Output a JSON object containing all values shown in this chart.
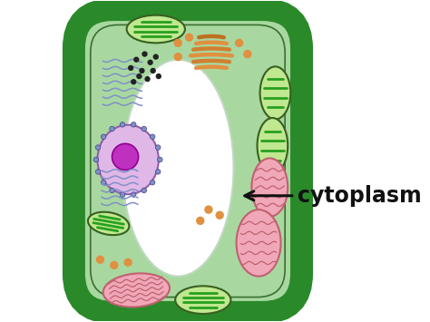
{
  "bg_color": "#ffffff",
  "cell_wall_color": "#2a8a2a",
  "cell_fill_color": "#a8d8a0",
  "cell_inner_fill": "#b8e0b0",
  "vacuole_color": "#e8f8e8",
  "vacuole_border": "#c0d8c0",
  "nucleus_fill": "#e0b8e8",
  "nucleus_border": "#9060a8",
  "nucleolus_fill": "#c030c0",
  "chloroplast_fill": "#c0e890",
  "chloroplast_border": "#386020",
  "chloroplast_stripe": "#28a020",
  "mito_fill": "#f0a8b8",
  "mito_border": "#c06070",
  "mito_stripe": "#c06070",
  "er_color": "#8090c8",
  "er_dot_border": "#404080",
  "golgi_color": "#e09040",
  "vesicle_color": "#e09040",
  "ribosome_color": "#222222",
  "arrow_color": "#111111",
  "label_color": "#111111",
  "label_text": "cytoplasm",
  "label_fontsize": 17,
  "label_fontweight": "bold",
  "border_color": "#60c060"
}
